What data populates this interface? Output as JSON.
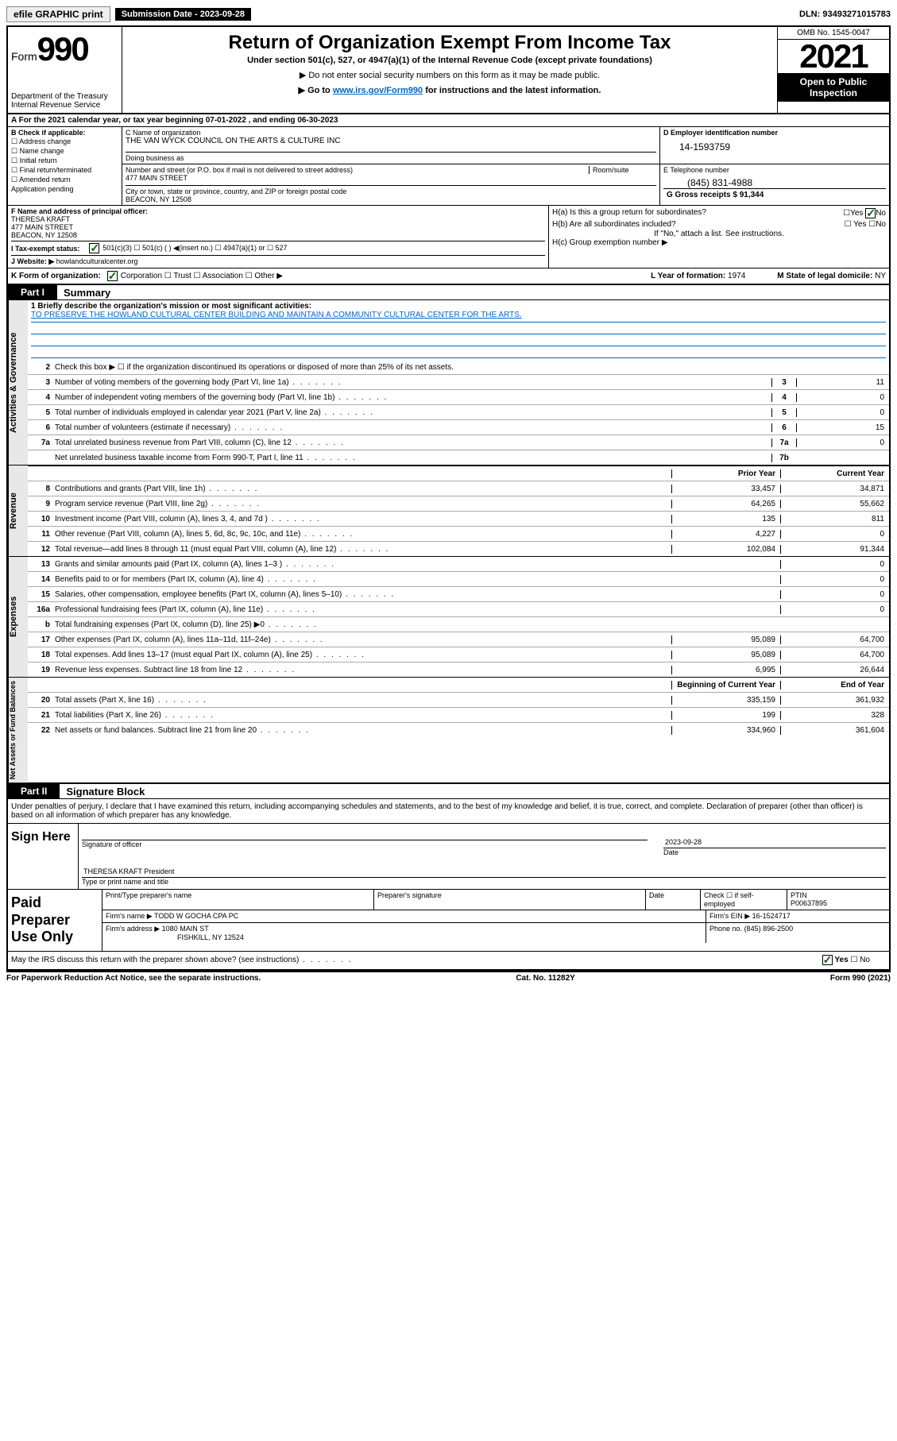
{
  "topbar": {
    "efile": "efile GRAPHIC print",
    "sub_label": "Submission Date - 2023-09-28",
    "dln": "DLN: 93493271015783"
  },
  "header": {
    "form_prefix": "Form",
    "form_num": "990",
    "dept": "Department of the Treasury",
    "irs": "Internal Revenue Service",
    "title": "Return of Organization Exempt From Income Tax",
    "subtitle": "Under section 501(c), 527, or 4947(a)(1) of the Internal Revenue Code (except private foundations)",
    "note1": "▶ Do not enter social security numbers on this form as it may be made public.",
    "note2_pre": "▶ Go to ",
    "note2_link": "www.irs.gov/Form990",
    "note2_post": " for instructions and the latest information.",
    "omb": "OMB No. 1545-0047",
    "year": "2021",
    "open": "Open to Public Inspection"
  },
  "a": {
    "text": "A For the 2021 calendar year, or tax year beginning 07-01-2022   , and ending 06-30-2023"
  },
  "b": {
    "label": "B Check if applicable:",
    "opts": [
      "☐ Address change",
      "☐ Name change",
      "☐ Initial return",
      "☐ Final return/terminated",
      "☐ Amended return",
      "Application pending"
    ]
  },
  "c": {
    "name_label": "C Name of organization",
    "name": "THE VAN WYCK COUNCIL ON THE ARTS & CULTURE INC",
    "dba_label": "Doing business as",
    "addr_label": "Number and street (or P.O. box if mail is not delivered to street address)",
    "room_label": "Room/suite",
    "addr": "477 MAIN STREET",
    "city_label": "City or town, state or province, country, and ZIP or foreign postal code",
    "city": "BEACON, NY  12508"
  },
  "d": {
    "label": "D Employer identification number",
    "ein": "14-1593759"
  },
  "e": {
    "label": "E Telephone number",
    "phone": "(845) 831-4988"
  },
  "g": {
    "label": "G Gross receipts $",
    "val": "91,344"
  },
  "f": {
    "label": "F Name and address of principal officer:",
    "name": "THERESA KRAFT",
    "addr1": "477 MAIN STREET",
    "addr2": "BEACON, NY  12508"
  },
  "h": {
    "a_label": "H(a)  Is this a group return for subordinates?",
    "a_yes": "☐Yes",
    "a_no": "No",
    "b_label": "H(b)  Are all subordinates included?",
    "b_yesno": "☐ Yes  ☐No",
    "b_note": "If \"No,\" attach a list. See instructions.",
    "c_label": "H(c)  Group exemption number ▶"
  },
  "i": {
    "label": "I    Tax-exempt status:",
    "opts": "501(c)(3)    ☐  501(c) (  ) ◀(insert no.)     ☐ 4947(a)(1) or   ☐ 527"
  },
  "j": {
    "label": "J    Website: ▶",
    "val": "howlandculturalcenter.org"
  },
  "k": {
    "label": "K Form of organization:",
    "opts": "Corporation  ☐ Trust  ☐ Association  ☐ Other ▶"
  },
  "l": {
    "label": "L Year of formation:",
    "val": "1974"
  },
  "m": {
    "label": "M State of legal domicile:",
    "val": "NY"
  },
  "part1": {
    "tab": "Part I",
    "title": "Summary",
    "vtab1": "Activities & Governance",
    "line1_label": "1  Briefly describe the organization's mission or most significant activities:",
    "mission": "TO PRESERVE THE HOWLAND CULTURAL CENTER BUILDING AND MAINTAIN A COMMUNITY CULTURAL CENTER FOR THE ARTS.",
    "line2": "Check this box ▶ ☐  if the organization discontinued its operations or disposed of more than 25% of its net assets.",
    "rows_gov": [
      {
        "n": "3",
        "d": "Number of voting members of the governing body (Part VI, line 1a)",
        "box": "3",
        "v": "11"
      },
      {
        "n": "4",
        "d": "Number of independent voting members of the governing body (Part VI, line 1b)",
        "box": "4",
        "v": "0"
      },
      {
        "n": "5",
        "d": "Total number of individuals employed in calendar year 2021 (Part V, line 2a)",
        "box": "5",
        "v": "0"
      },
      {
        "n": "6",
        "d": "Total number of volunteers (estimate if necessary)",
        "box": "6",
        "v": "15"
      },
      {
        "n": "7a",
        "d": "Total unrelated business revenue from Part VIII, column (C), line 12",
        "box": "7a",
        "v": "0"
      },
      {
        "n": "",
        "d": "Net unrelated business taxable income from Form 990-T, Part I, line 11",
        "box": "7b",
        "v": ""
      }
    ],
    "vtab2": "Revenue",
    "col_prior": "Prior Year",
    "col_curr": "Current Year",
    "rows_rev": [
      {
        "n": "8",
        "d": "Contributions and grants (Part VIII, line 1h)",
        "p": "33,457",
        "c": "34,871"
      },
      {
        "n": "9",
        "d": "Program service revenue (Part VIII, line 2g)",
        "p": "64,265",
        "c": "55,662"
      },
      {
        "n": "10",
        "d": "Investment income (Part VIII, column (A), lines 3, 4, and 7d )",
        "p": "135",
        "c": "811"
      },
      {
        "n": "11",
        "d": "Other revenue (Part VIII, column (A), lines 5, 6d, 8c, 9c, 10c, and 11e)",
        "p": "4,227",
        "c": "0"
      },
      {
        "n": "12",
        "d": "Total revenue—add lines 8 through 11 (must equal Part VIII, column (A), line 12)",
        "p": "102,084",
        "c": "91,344"
      }
    ],
    "vtab3": "Expenses",
    "rows_exp": [
      {
        "n": "13",
        "d": "Grants and similar amounts paid (Part IX, column (A), lines 1–3 )",
        "p": "",
        "c": "0"
      },
      {
        "n": "14",
        "d": "Benefits paid to or for members (Part IX, column (A), line 4)",
        "p": "",
        "c": "0"
      },
      {
        "n": "15",
        "d": "Salaries, other compensation, employee benefits (Part IX, column (A), lines 5–10)",
        "p": "",
        "c": "0"
      },
      {
        "n": "16a",
        "d": "Professional fundraising fees (Part IX, column (A), line 11e)",
        "p": "",
        "c": "0"
      },
      {
        "n": "b",
        "d": "Total fundraising expenses (Part IX, column (D), line 25) ▶0",
        "p": "shaded",
        "c": "shaded"
      },
      {
        "n": "17",
        "d": "Other expenses (Part IX, column (A), lines 11a–11d, 11f–24e)",
        "p": "95,089",
        "c": "64,700"
      },
      {
        "n": "18",
        "d": "Total expenses. Add lines 13–17 (must equal Part IX, column (A), line 25)",
        "p": "95,089",
        "c": "64,700"
      },
      {
        "n": "19",
        "d": "Revenue less expenses. Subtract line 18 from line 12",
        "p": "6,995",
        "c": "26,644"
      }
    ],
    "vtab4": "Net Assets or Fund Balances",
    "col_begin": "Beginning of Current Year",
    "col_end": "End of Year",
    "rows_net": [
      {
        "n": "20",
        "d": "Total assets (Part X, line 16)",
        "p": "335,159",
        "c": "361,932"
      },
      {
        "n": "21",
        "d": "Total liabilities (Part X, line 26)",
        "p": "199",
        "c": "328"
      },
      {
        "n": "22",
        "d": "Net assets or fund balances. Subtract line 21 from line 20",
        "p": "334,960",
        "c": "361,604"
      }
    ]
  },
  "part2": {
    "tab": "Part II",
    "title": "Signature Block",
    "decl": "Under penalties of perjury, I declare that I have examined this return, including accompanying schedules and statements, and to the best of my knowledge and belief, it is true, correct, and complete. Declaration of preparer (other than officer) is based on all information of which preparer has any knowledge."
  },
  "sign": {
    "label": "Sign Here",
    "sig_label": "Signature of officer",
    "date_label": "Date",
    "date": "2023-09-28",
    "name": "THERESA KRAFT  President",
    "name_label": "Type or print name and title"
  },
  "prep": {
    "label": "Paid Preparer Use Only",
    "h1": "Print/Type preparer's name",
    "h2": "Preparer's signature",
    "h3": "Date",
    "h4": "Check ☐ if self-employed",
    "h5_label": "PTIN",
    "h5": "P00637895",
    "firm_label": "Firm's name    ▶",
    "firm": "TODD W GOCHA CPA PC",
    "ein_label": "Firm's EIN ▶",
    "ein": "16-1524717",
    "addr_label": "Firm's address ▶",
    "addr1": "1080 MAIN ST",
    "addr2": "FISHKILL, NY  12524",
    "phone_label": "Phone no.",
    "phone": "(845) 896-2500"
  },
  "discuss": {
    "q": "May the IRS discuss this return with the preparer shown above? (see instructions)",
    "yes": "Yes",
    "no": "☐ No"
  },
  "footer": {
    "left": "For Paperwork Reduction Act Notice, see the separate instructions.",
    "mid": "Cat. No. 11282Y",
    "right": "Form 990 (2021)"
  }
}
